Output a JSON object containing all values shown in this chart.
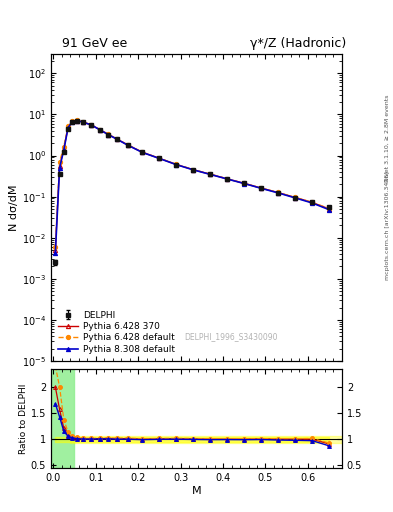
{
  "title_left": "91 GeV ee",
  "title_right": "γ*/Z (Hadronic)",
  "ylabel_main": "N dσ/dM",
  "ylabel_ratio": "Ratio to DELPHI",
  "xlabel": "M",
  "right_label1": "Rivet 3.1.10, ≥ 2.8M events",
  "right_label2": "mcplots.cern.ch [arXiv:1306.3436]",
  "watermark": "DELPHI_1996_S3430090",
  "ylim_main": [
    1e-05,
    300
  ],
  "ylim_ratio": [
    0.44,
    2.35
  ],
  "xlim": [
    -0.005,
    0.68
  ],
  "data_x": [
    0.005,
    0.015,
    0.025,
    0.035,
    0.045,
    0.055,
    0.07,
    0.09,
    0.11,
    0.13,
    0.15,
    0.175,
    0.21,
    0.25,
    0.29,
    0.33,
    0.37,
    0.41,
    0.45,
    0.49,
    0.53,
    0.57,
    0.61,
    0.65
  ],
  "data_y": [
    0.0025,
    0.35,
    1.2,
    4.5,
    6.5,
    7.0,
    6.5,
    5.5,
    4.2,
    3.2,
    2.5,
    1.8,
    1.2,
    0.85,
    0.6,
    0.45,
    0.35,
    0.27,
    0.21,
    0.16,
    0.125,
    0.095,
    0.072,
    0.055
  ],
  "data_yerr": [
    0.0003,
    0.015,
    0.04,
    0.1,
    0.12,
    0.12,
    0.1,
    0.08,
    0.06,
    0.05,
    0.04,
    0.03,
    0.02,
    0.015,
    0.012,
    0.01,
    0.008,
    0.007,
    0.006,
    0.005,
    0.004,
    0.003,
    0.003,
    0.003
  ],
  "pythia628_370_y": [
    0.005,
    0.55,
    1.45,
    4.9,
    6.75,
    7.1,
    6.55,
    5.55,
    4.25,
    3.25,
    2.52,
    1.82,
    1.2,
    0.855,
    0.605,
    0.452,
    0.35,
    0.27,
    0.21,
    0.161,
    0.125,
    0.095,
    0.072,
    0.05
  ],
  "pythia628_def_y": [
    0.006,
    0.7,
    1.65,
    5.1,
    6.95,
    7.25,
    6.6,
    5.58,
    4.28,
    3.28,
    2.55,
    1.84,
    1.21,
    0.862,
    0.61,
    0.456,
    0.353,
    0.272,
    0.211,
    0.162,
    0.126,
    0.096,
    0.073,
    0.051
  ],
  "pythia8308_y": [
    0.0042,
    0.5,
    1.38,
    4.75,
    6.68,
    7.08,
    6.52,
    5.52,
    4.22,
    3.22,
    2.5,
    1.8,
    1.19,
    0.848,
    0.6,
    0.448,
    0.347,
    0.268,
    0.208,
    0.159,
    0.123,
    0.093,
    0.07,
    0.048
  ],
  "color_data": "#000000",
  "color_p628_370": "#cc0000",
  "color_p628_def": "#ff8800",
  "color_p8308": "#0000cc"
}
